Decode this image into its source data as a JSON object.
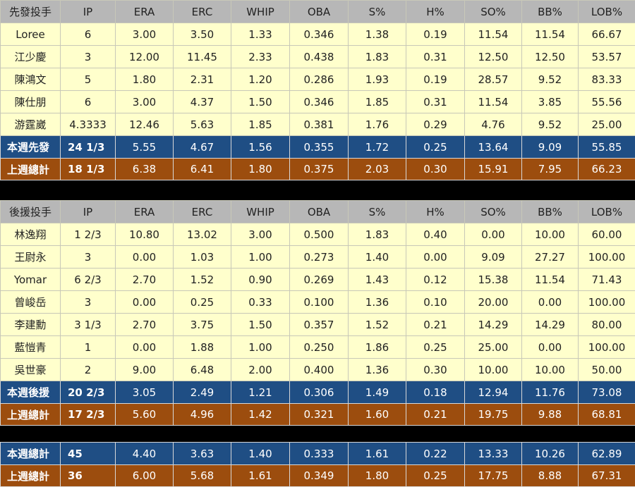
{
  "columns": [
    "IP",
    "ERA",
    "ERC",
    "WHIP",
    "OBA",
    "S%",
    "H%",
    "SO%",
    "BB%",
    "LOB%"
  ],
  "starters": {
    "header": "先發投手",
    "rows": [
      {
        "name": "Loree",
        "values": [
          "6",
          "3.00",
          "3.50",
          "1.33",
          "0.346",
          "1.38",
          "0.19",
          "11.54",
          "11.54",
          "66.67"
        ]
      },
      {
        "name": "江少慶",
        "values": [
          "3",
          "12.00",
          "11.45",
          "2.33",
          "0.438",
          "1.83",
          "0.31",
          "12.50",
          "12.50",
          "53.57"
        ]
      },
      {
        "name": "陳鴻文",
        "values": [
          "5",
          "1.80",
          "2.31",
          "1.20",
          "0.286",
          "1.93",
          "0.19",
          "28.57",
          "9.52",
          "83.33"
        ]
      },
      {
        "name": "陳仕朋",
        "values": [
          "6",
          "3.00",
          "4.37",
          "1.50",
          "0.346",
          "1.85",
          "0.31",
          "11.54",
          "3.85",
          "55.56"
        ]
      },
      {
        "name": "游霆崴",
        "values": [
          "4.3333",
          "12.46",
          "5.63",
          "1.85",
          "0.381",
          "1.76",
          "0.29",
          "4.76",
          "9.52",
          "25.00"
        ]
      }
    ],
    "this_week": {
      "name": "本週先發",
      "values": [
        "24 1/3",
        "5.55",
        "4.67",
        "1.56",
        "0.355",
        "1.72",
        "0.25",
        "13.64",
        "9.09",
        "55.85"
      ]
    },
    "last_week": {
      "name": "上週總計",
      "values": [
        "18 1/3",
        "6.38",
        "6.41",
        "1.80",
        "0.375",
        "2.03",
        "0.30",
        "15.91",
        "7.95",
        "66.23"
      ]
    }
  },
  "relievers": {
    "header": "後援投手",
    "rows": [
      {
        "name": "林逸翔",
        "values": [
          "1 2/3",
          "10.80",
          "13.02",
          "3.00",
          "0.500",
          "1.83",
          "0.40",
          "0.00",
          "10.00",
          "60.00"
        ]
      },
      {
        "name": "王尉永",
        "values": [
          "3",
          "0.00",
          "1.03",
          "1.00",
          "0.273",
          "1.40",
          "0.00",
          "9.09",
          "27.27",
          "100.00"
        ]
      },
      {
        "name": "Yomar",
        "values": [
          "6 2/3",
          "2.70",
          "1.52",
          "0.90",
          "0.269",
          "1.43",
          "0.12",
          "15.38",
          "11.54",
          "71.43"
        ]
      },
      {
        "name": "曾峻岳",
        "values": [
          "3",
          "0.00",
          "0.25",
          "0.33",
          "0.100",
          "1.36",
          "0.10",
          "20.00",
          "0.00",
          "100.00"
        ]
      },
      {
        "name": "李建勳",
        "values": [
          "3 1/3",
          "2.70",
          "3.75",
          "1.50",
          "0.357",
          "1.52",
          "0.21",
          "14.29",
          "14.29",
          "80.00"
        ]
      },
      {
        "name": "藍愷青",
        "values": [
          "1",
          "0.00",
          "1.88",
          "1.00",
          "0.250",
          "1.86",
          "0.25",
          "25.00",
          "0.00",
          "100.00"
        ]
      },
      {
        "name": "吳世豪",
        "values": [
          "2",
          "9.00",
          "6.48",
          "2.00",
          "0.400",
          "1.36",
          "0.30",
          "10.00",
          "10.00",
          "50.00"
        ]
      }
    ],
    "this_week": {
      "name": "本週後援",
      "values": [
        "20 2/3",
        "3.05",
        "2.49",
        "1.21",
        "0.306",
        "1.49",
        "0.18",
        "12.94",
        "11.76",
        "73.08"
      ]
    },
    "last_week": {
      "name": "上週總計",
      "values": [
        "17 2/3",
        "5.60",
        "4.96",
        "1.42",
        "0.321",
        "1.60",
        "0.21",
        "19.75",
        "9.88",
        "68.81"
      ]
    }
  },
  "totals": {
    "this_week": {
      "name": "本週總計",
      "values": [
        "45",
        "4.40",
        "3.63",
        "1.40",
        "0.333",
        "1.61",
        "0.22",
        "13.33",
        "10.26",
        "62.89"
      ]
    },
    "last_week": {
      "name": "上週總計",
      "values": [
        "36",
        "6.00",
        "5.68",
        "1.61",
        "0.349",
        "1.80",
        "0.25",
        "17.75",
        "8.88",
        "67.31"
      ]
    }
  },
  "colors": {
    "header_bg": "#b7b7b7",
    "row_bg": "#ffffcc",
    "this_week_bg": "#1f4e84",
    "last_week_bg": "#9c4d0e",
    "separator": "#000000"
  }
}
